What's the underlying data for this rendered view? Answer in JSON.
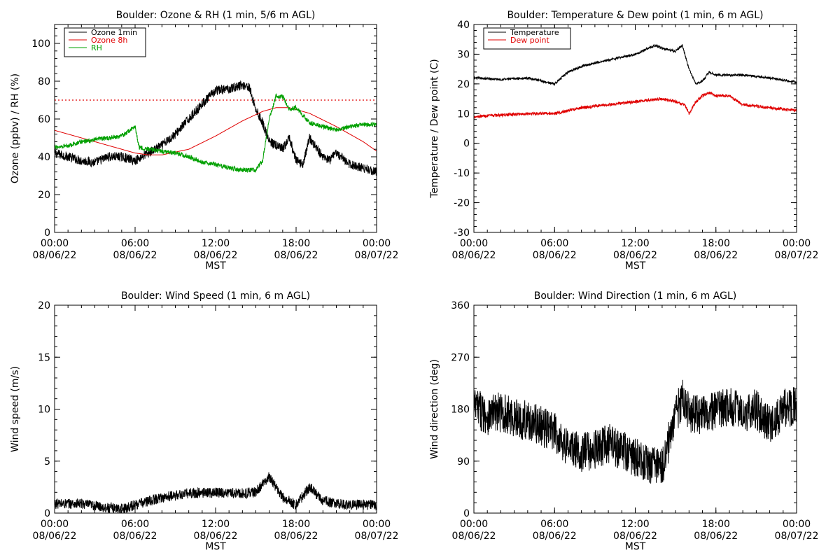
{
  "colors": {
    "black": "#000000",
    "red": "#e00000",
    "green": "#00a000",
    "ref_line": "#e00000"
  },
  "xaxis": {
    "label": "MST",
    "ticks": [
      {
        "time": "00:00",
        "date": "08/06/22",
        "hour": 0
      },
      {
        "time": "06:00",
        "date": "08/06/22",
        "hour": 6
      },
      {
        "time": "12:00",
        "date": "08/06/22",
        "hour": 12
      },
      {
        "time": "18:00",
        "date": "08/06/22",
        "hour": 18
      },
      {
        "time": "00:00",
        "date": "08/07/22",
        "hour": 24
      }
    ]
  },
  "chart_data": [
    {
      "id": "ozone-rh",
      "type": "line",
      "title": "Boulder: Ozone & RH (1 min, 5/6 m AGL)",
      "ylabel": "Ozone (ppbv) / RH (%)",
      "xlim": [
        0,
        24
      ],
      "ylim": [
        0,
        110
      ],
      "yticks": [
        0,
        20,
        40,
        60,
        80,
        100
      ],
      "legend": {
        "position": "top-left"
      },
      "reference_line": {
        "y": 70,
        "style": "dotted",
        "color": "#e00000"
      },
      "series": [
        {
          "name": "Ozone 1min",
          "color": "#000000",
          "noise": 2.5,
          "x": [
            0,
            1,
            2,
            3,
            4,
            5,
            6,
            7,
            8,
            9,
            10,
            11,
            12,
            13,
            14,
            14.5,
            15,
            15.5,
            16,
            16.5,
            17,
            17.5,
            18,
            18.5,
            19,
            19.5,
            20,
            20.5,
            21,
            22,
            23,
            24
          ],
          "y": [
            42,
            40,
            38,
            37,
            40,
            40,
            38,
            42,
            46,
            52,
            60,
            68,
            75,
            76,
            78,
            77,
            65,
            58,
            48,
            46,
            44,
            50,
            38,
            36,
            50,
            45,
            40,
            38,
            42,
            36,
            34,
            32
          ]
        },
        {
          "name": "Ozone 8h",
          "color": "#e00000",
          "noise": 0,
          "x": [
            0,
            2,
            4,
            6,
            7,
            8,
            10,
            12,
            14,
            15.5,
            16.5,
            17.5,
            19,
            21,
            23,
            24
          ],
          "y": [
            54,
            50,
            46,
            42,
            41,
            41,
            44,
            51,
            59,
            64,
            66,
            66,
            63,
            56,
            48,
            43
          ]
        },
        {
          "name": "RH",
          "color": "#00a000",
          "noise": 1.2,
          "x": [
            0,
            1,
            2,
            3,
            4,
            5,
            6,
            6.3,
            7,
            8,
            9,
            10,
            11,
            12,
            13,
            14,
            15,
            15.5,
            16,
            16.5,
            17,
            17.5,
            18,
            18.5,
            19,
            20,
            21,
            22,
            23,
            24
          ],
          "y": [
            45,
            46,
            48,
            49,
            50,
            51,
            56,
            45,
            44,
            43,
            42,
            40,
            37,
            36,
            34,
            33,
            33,
            38,
            60,
            72,
            72,
            65,
            66,
            62,
            58,
            56,
            54,
            56,
            57,
            57
          ]
        }
      ]
    },
    {
      "id": "temp-dew",
      "type": "line",
      "title": "Boulder: Temperature & Dew point (1 min, 6 m AGL)",
      "ylabel": "Temperature / Dew point (C)",
      "xlim": [
        0,
        24
      ],
      "ylim": [
        -30,
        40
      ],
      "yticks": [
        -30,
        -20,
        -10,
        0,
        10,
        20,
        30,
        40
      ],
      "legend": {
        "position": "top-left"
      },
      "series": [
        {
          "name": "Temperature",
          "color": "#000000",
          "noise": 0.4,
          "x": [
            0,
            2,
            4,
            5,
            6,
            7,
            8,
            10,
            12,
            13,
            13.5,
            14,
            15,
            15.5,
            16,
            16.5,
            17,
            17.5,
            18,
            19,
            20,
            22,
            24
          ],
          "y": [
            22,
            21.5,
            22,
            21,
            20,
            24,
            26,
            28,
            30,
            32,
            33,
            32,
            31,
            33,
            25,
            20,
            21,
            24,
            23,
            23,
            23,
            22,
            20.5
          ]
        },
        {
          "name": "Dew point",
          "color": "#e00000",
          "noise": 0.5,
          "x": [
            0,
            2,
            4,
            6,
            7,
            8,
            10,
            12,
            14,
            15,
            15.7,
            16,
            16.5,
            17,
            17.5,
            18,
            19,
            20,
            22,
            24
          ],
          "y": [
            9,
            9.5,
            10,
            10,
            11,
            12,
            13,
            14,
            15,
            14,
            13,
            10,
            14,
            16,
            17,
            16,
            16,
            13,
            12,
            11
          ]
        }
      ]
    },
    {
      "id": "wind-speed",
      "type": "line",
      "title": "Boulder: Wind Speed (1 min, 6 m AGL)",
      "ylabel": "Wind speed (m/s)",
      "xlim": [
        0,
        24
      ],
      "ylim": [
        0,
        20
      ],
      "yticks": [
        0,
        5,
        10,
        15,
        20
      ],
      "series": [
        {
          "name": "",
          "color": "#000000",
          "noise": 0.5,
          "x": [
            0,
            2,
            4,
            5,
            6,
            8,
            10,
            12,
            14,
            15,
            16,
            16.5,
            17,
            18,
            19,
            19.5,
            20,
            21,
            22,
            24
          ],
          "y": [
            0.9,
            0.9,
            0.5,
            0.4,
            0.8,
            1.5,
            1.9,
            2.0,
            1.9,
            2.0,
            3.5,
            2.5,
            1.5,
            0.8,
            2.5,
            1.8,
            1.2,
            0.9,
            0.8,
            0.8
          ]
        }
      ]
    },
    {
      "id": "wind-direction",
      "type": "line",
      "title": "Boulder: Wind Direction (1 min, 6 m AGL)",
      "ylabel": "Wind direction (deg)",
      "xlim": [
        0,
        24
      ],
      "ylim": [
        0,
        360
      ],
      "yticks": [
        0,
        90,
        180,
        270,
        360
      ],
      "series": [
        {
          "name": "",
          "color": "#000000",
          "noise": 35,
          "x": [
            0,
            1,
            2,
            3,
            4,
            5,
            6,
            7,
            8,
            9,
            10,
            11,
            12,
            13,
            14,
            15,
            15.5,
            16,
            17,
            18,
            19,
            20,
            21,
            22,
            23,
            24
          ],
          "y": [
            185,
            170,
            175,
            165,
            160,
            150,
            140,
            115,
            105,
            110,
            120,
            110,
            95,
            85,
            80,
            170,
            200,
            175,
            170,
            175,
            185,
            175,
            180,
            150,
            180,
            185
          ]
        }
      ]
    }
  ]
}
